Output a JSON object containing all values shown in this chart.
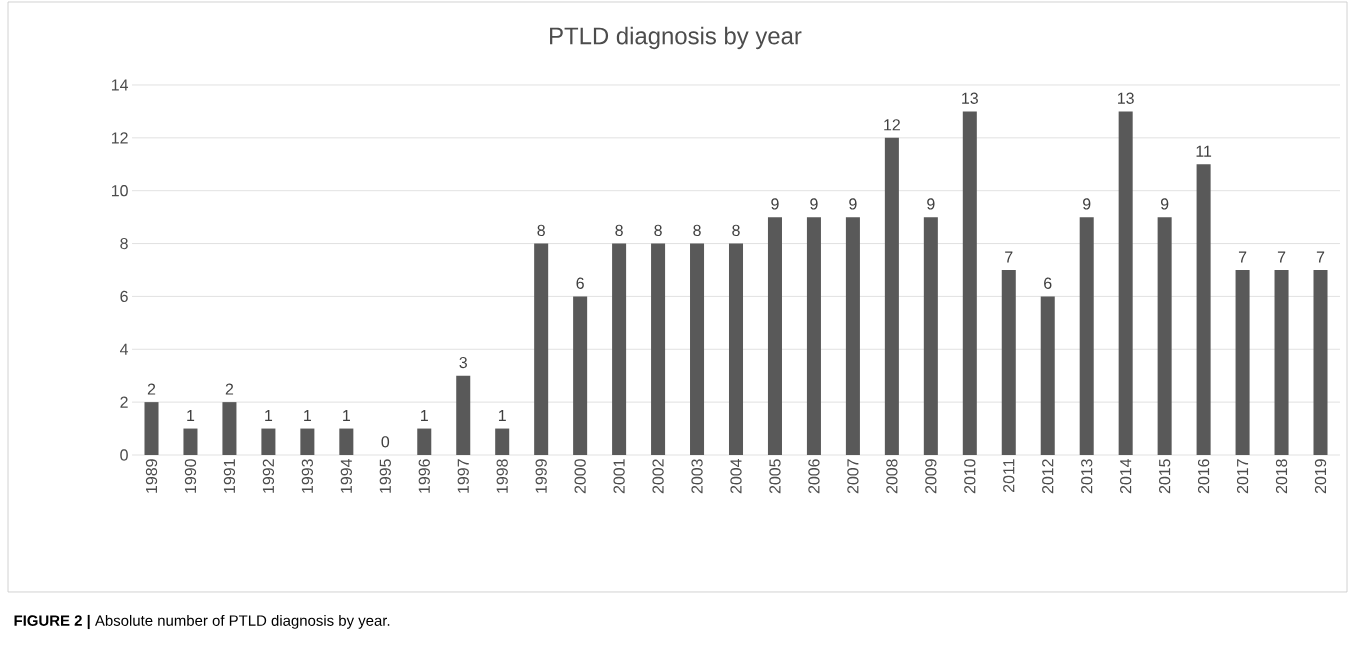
{
  "chart_data": {
    "type": "bar",
    "title": "PTLD diagnosis by year",
    "categories": [
      "1989",
      "1990",
      "1991",
      "1992",
      "1993",
      "1994",
      "1995",
      "1996",
      "1997",
      "1998",
      "1999",
      "2000",
      "2001",
      "2002",
      "2003",
      "2004",
      "2005",
      "2006",
      "2007",
      "2008",
      "2009",
      "2010",
      "2011",
      "2012",
      "2013",
      "2014",
      "2015",
      "2016",
      "2017",
      "2018",
      "2019"
    ],
    "values": [
      2,
      1,
      2,
      1,
      1,
      1,
      0,
      1,
      3,
      1,
      8,
      6,
      8,
      8,
      8,
      8,
      9,
      9,
      9,
      12,
      9,
      13,
      7,
      6,
      9,
      13,
      9,
      11,
      7,
      7,
      7
    ],
    "color": "#595959",
    "ylim": [
      0,
      14
    ],
    "yticks": [
      0,
      2,
      4,
      6,
      8,
      10,
      12,
      14
    ],
    "grid": "y",
    "data_labels": true,
    "annotations": [
      "**FIGURE 2 |** Absolute number of PTLD diagnosis by year."
    ]
  }
}
